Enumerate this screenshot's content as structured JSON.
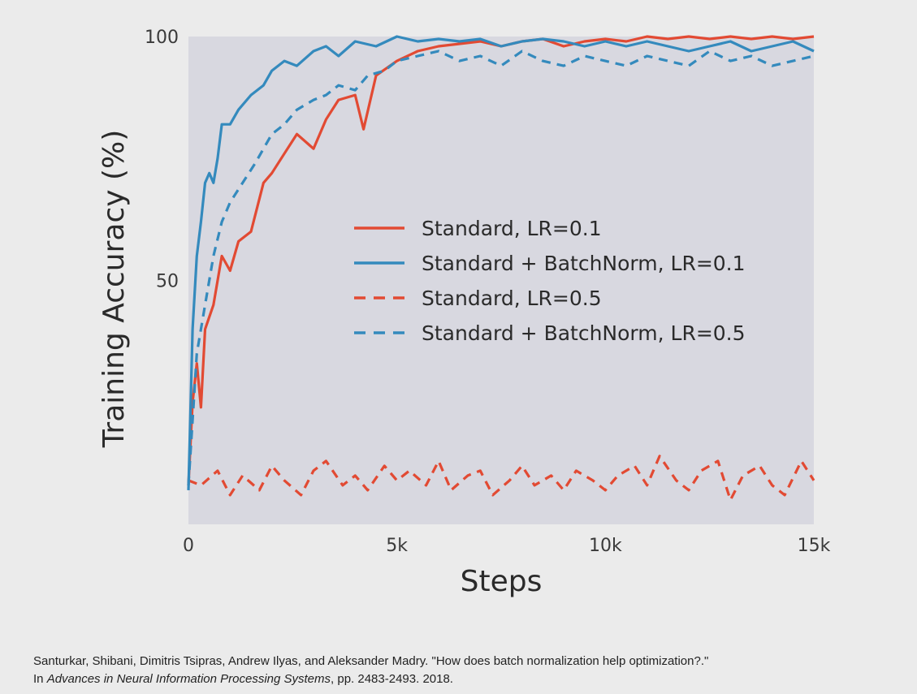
{
  "chart_data": {
    "type": "line",
    "title": "",
    "xlabel": "Steps",
    "ylabel": "Training Accuracy (%)",
    "xlim": [
      0,
      15000
    ],
    "ylim": [
      0,
      100
    ],
    "x_ticks": [
      {
        "value": 0,
        "label": "0"
      },
      {
        "value": 5000,
        "label": "5k"
      },
      {
        "value": 10000,
        "label": "10k"
      },
      {
        "value": 15000,
        "label": "15k"
      }
    ],
    "y_ticks": [
      {
        "value": 50,
        "label": "50"
      },
      {
        "value": 100,
        "label": "100"
      }
    ],
    "grid": false,
    "legend_position": "center-right",
    "background_color": "#d8d8e0",
    "series": [
      {
        "name": "Standard, LR=0.1",
        "color": "#e24a33",
        "style": "solid",
        "x": [
          0,
          100,
          200,
          300,
          400,
          600,
          800,
          1000,
          1200,
          1500,
          1800,
          2000,
          2300,
          2600,
          3000,
          3300,
          3600,
          4000,
          4200,
          4500,
          5000,
          5500,
          6000,
          6500,
          7000,
          7500,
          8000,
          8500,
          9000,
          9500,
          10000,
          10500,
          11000,
          11500,
          12000,
          12500,
          13000,
          13500,
          14000,
          14500,
          15000
        ],
        "y": [
          8,
          25,
          33,
          24,
          40,
          45,
          55,
          52,
          58,
          60,
          70,
          72,
          76,
          80,
          77,
          83,
          87,
          88,
          81,
          92,
          95,
          97,
          98,
          98.5,
          99,
          98,
          99,
          99.5,
          98,
          99,
          99.5,
          99,
          100,
          99.5,
          100,
          99.5,
          100,
          99.5,
          100,
          99.5,
          100
        ]
      },
      {
        "name": "Standard + BatchNorm, LR=0.1",
        "color": "#348abd",
        "style": "solid",
        "x": [
          0,
          100,
          200,
          300,
          400,
          500,
          600,
          700,
          800,
          1000,
          1200,
          1500,
          1800,
          2000,
          2300,
          2600,
          3000,
          3300,
          3600,
          4000,
          4500,
          5000,
          5500,
          6000,
          6500,
          7000,
          7500,
          8000,
          8500,
          9000,
          9500,
          10000,
          10500,
          11000,
          11500,
          12000,
          12500,
          13000,
          13500,
          14000,
          14500,
          15000
        ],
        "y": [
          7,
          40,
          55,
          62,
          70,
          72,
          70,
          75,
          82,
          82,
          85,
          88,
          90,
          93,
          95,
          94,
          97,
          98,
          96,
          99,
          98,
          100,
          99,
          99.5,
          99,
          99.5,
          98,
          99,
          99.5,
          99,
          98,
          99,
          98,
          99,
          98,
          97,
          98,
          99,
          97,
          98,
          99,
          97
        ]
      },
      {
        "name": "Standard, LR=0.5",
        "color": "#e24a33",
        "style": "dashed",
        "x": [
          0,
          300,
          700,
          1000,
          1300,
          1700,
          2000,
          2300,
          2700,
          3000,
          3300,
          3700,
          4000,
          4300,
          4700,
          5000,
          5300,
          5700,
          6000,
          6300,
          6700,
          7000,
          7300,
          7700,
          8000,
          8300,
          8700,
          9000,
          9300,
          9700,
          10000,
          10300,
          10700,
          11000,
          11300,
          11700,
          12000,
          12300,
          12700,
          13000,
          13300,
          13700,
          14000,
          14300,
          14700,
          15000
        ],
        "y": [
          9,
          8,
          11,
          6,
          10,
          7,
          12,
          9,
          6,
          11,
          13,
          8,
          10,
          7,
          12,
          9,
          11,
          8,
          13,
          7,
          10,
          11,
          6,
          9,
          12,
          8,
          10,
          7,
          11,
          9,
          7,
          10,
          12,
          8,
          14,
          9,
          7,
          11,
          13,
          5,
          10,
          12,
          8,
          6,
          13,
          9
        ]
      },
      {
        "name": "Standard + BatchNorm, LR=0.5",
        "color": "#348abd",
        "style": "dashed",
        "x": [
          0,
          200,
          400,
          600,
          800,
          1000,
          1300,
          1600,
          2000,
          2300,
          2600,
          3000,
          3300,
          3600,
          4000,
          4300,
          4700,
          5000,
          5500,
          6000,
          6500,
          7000,
          7500,
          8000,
          8500,
          9000,
          9500,
          10000,
          10500,
          11000,
          11500,
          12000,
          12500,
          13000,
          13500,
          14000,
          14500,
          15000
        ],
        "y": [
          8,
          35,
          45,
          55,
          62,
          66,
          70,
          74,
          80,
          82,
          85,
          87,
          88,
          90,
          89,
          92,
          93,
          95,
          96,
          97,
          95,
          96,
          94,
          97,
          95,
          94,
          96,
          95,
          94,
          96,
          95,
          94,
          97,
          95,
          96,
          94,
          95,
          96
        ]
      }
    ]
  },
  "citation": {
    "line1": "Santurkar, Shibani, Dimitris Tsipras, Andrew Ilyas, and Aleksander Madry. \"How does batch normalization help optimization?.\"",
    "line2_prefix": "In ",
    "line2_venue": "Advances in Neural Information Processing Systems",
    "line2_suffix": ", pp. 2483-2493. 2018."
  }
}
